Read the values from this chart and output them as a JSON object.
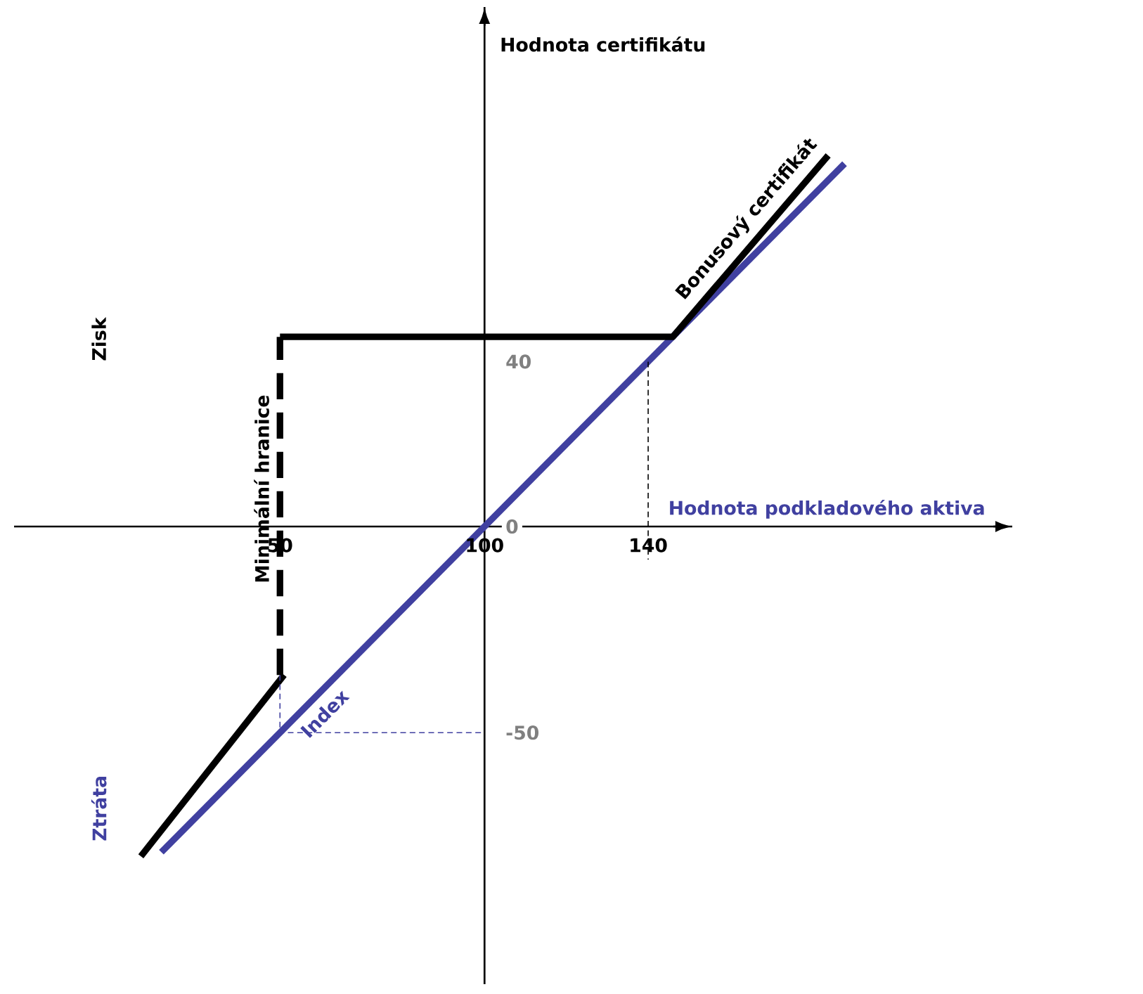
{
  "chart_data": {
    "type": "line",
    "xlabel": "Hodnota podkladového aktiva",
    "ylabel": "Hodnota certifikátu",
    "annotations": [
      "Zisk",
      "Ztráta"
    ],
    "xlim": [
      -15,
      229
    ],
    "ylim": [
      -111,
      126
    ],
    "xticks": [
      50,
      100,
      140
    ],
    "yticks": [
      -50,
      0,
      40
    ],
    "legend": false,
    "series": [
      {
        "name": "Index",
        "color": "#4040a0",
        "x": [
          21,
          188
        ],
        "values": [
          -79,
          88
        ],
        "line_style": "solid"
      },
      {
        "color": "#000000",
        "x": [
          16,
          51
        ],
        "values": [
          -80,
          -36
        ],
        "line_style": "solid"
      },
      {
        "name": "Minimální hranice",
        "color": "#000000",
        "x": [
          50,
          50
        ],
        "values": [
          -36,
          46
        ],
        "line_style": "dashed"
      },
      {
        "name": "Bonusový certifikát",
        "color": "#000000",
        "x": [
          50,
          146,
          184
        ],
        "values": [
          46,
          46,
          90
        ],
        "line_style": "solid"
      },
      {
        "color": "#4040a0",
        "x": [
          50,
          50,
          100
        ],
        "values": [
          -36,
          -50,
          -50
        ],
        "line_style": "dotted"
      },
      {
        "color": "#000000",
        "x": [
          140,
          140
        ],
        "values": [
          40,
          -8
        ],
        "line_style": "dotted"
      }
    ]
  }
}
